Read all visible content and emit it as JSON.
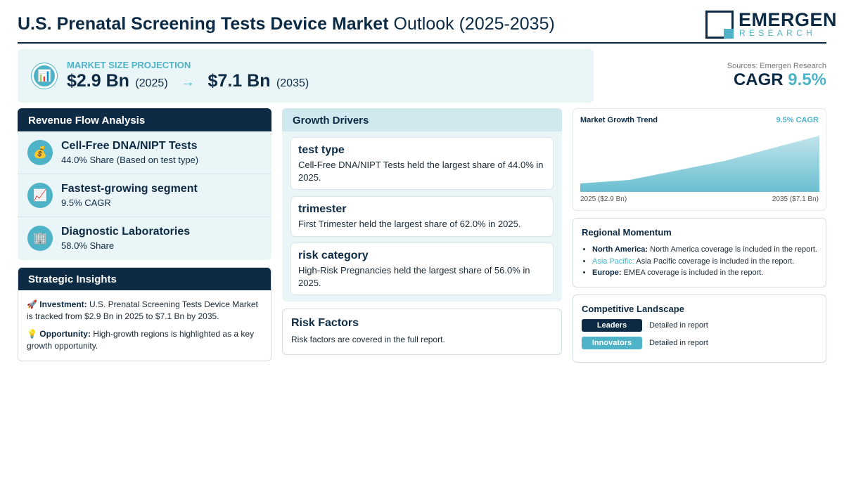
{
  "header": {
    "title_bold": "U.S. Prenatal Screening Tests Device Market",
    "title_light": "Outlook (2025-2035)",
    "logo_word": "EMERGEN",
    "logo_sub": "RESEARCH"
  },
  "projection": {
    "icon": "bar-chart-icon",
    "label": "MARKET SIZE PROJECTION",
    "start_value": "$2.9 Bn",
    "start_year": "(2025)",
    "arrow": "→",
    "end_value": "$7.1 Bn",
    "end_year": "(2035)"
  },
  "summary": {
    "sources": "Sources: Emergen Research",
    "cagr_label": "CAGR",
    "cagr_value": "9.5%"
  },
  "revenue_flow": {
    "heading": "Revenue Flow Analysis",
    "items": [
      {
        "icon": "money-bag-icon",
        "title": "Cell-Free DNA/NIPT Tests",
        "subtitle": "44.0% Share (Based on test type)"
      },
      {
        "icon": "trending-up-icon",
        "title": "Fastest-growing segment",
        "subtitle": "9.5% CAGR"
      },
      {
        "icon": "building-icon",
        "title": "Diagnostic Laboratories",
        "subtitle": "58.0% Share"
      }
    ]
  },
  "strategic_insights": {
    "heading": "Strategic Insights",
    "investment_label": "Investment:",
    "investment_text": "U.S. Prenatal Screening Tests Device Market is tracked from $2.9 Bn in 2025 to $7.1 Bn by 2035.",
    "opportunity_label": "Opportunity:",
    "opportunity_text": "High-growth regions is highlighted as a key growth opportunity."
  },
  "growth_drivers": {
    "heading": "Growth Drivers",
    "items": [
      {
        "title": "test type",
        "text": "Cell-Free DNA/NIPT Tests held the largest share of 44.0% in 2025."
      },
      {
        "title": "trimester",
        "text": "First Trimester held the largest share of 62.0% in 2025."
      },
      {
        "title": "risk category",
        "text": "High-Risk Pregnancies held the largest share of 56.0% in 2025."
      }
    ]
  },
  "risk_factors": {
    "heading": "Risk Factors",
    "text": "Risk factors are covered in the full report."
  },
  "trend": {
    "title": "Market Growth Trend",
    "cagr": "9.5% CAGR",
    "start_label": "2025 ($2.9 Bn)",
    "end_label": "2035 ($7.1 Bn)",
    "fill_color": "#4fb3c8"
  },
  "regional": {
    "heading": "Regional Momentum",
    "items": [
      {
        "name": "North America:",
        "text": "North America coverage is included in the report."
      },
      {
        "name": "Asia Pacific:",
        "text": "Asia Pacific coverage is included in the report."
      },
      {
        "name": "Europe:",
        "text": "EMEA coverage is included in the report."
      }
    ]
  },
  "competitive": {
    "heading": "Competitive Landscape",
    "rows": [
      {
        "badge": "Leaders",
        "text": "Detailed in report"
      },
      {
        "badge": "Innovators",
        "text": "Detailed in report"
      }
    ]
  },
  "colors": {
    "navy": "#0d2b44",
    "accent": "#4fb3c8",
    "panel_bg": "#eaf5f8"
  }
}
